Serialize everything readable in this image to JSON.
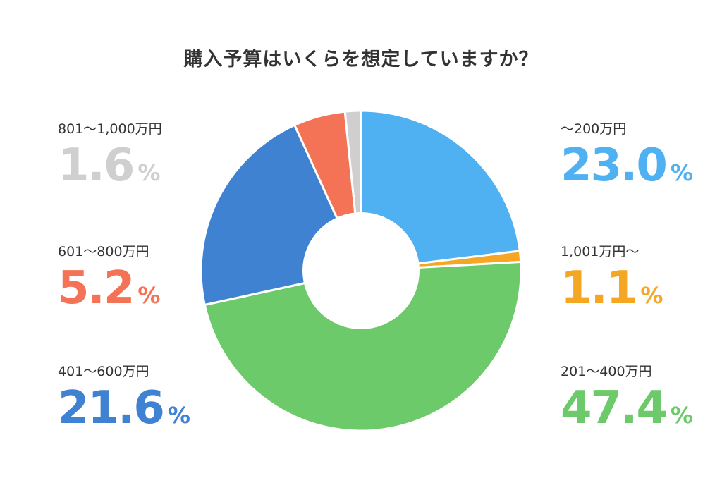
{
  "chart_data": {
    "type": "pie",
    "title": "購入予算はいくらを想定していますか？",
    "percent_sign": "%",
    "donut": true,
    "slices": [
      {
        "label": "～200万円",
        "value": 23.0,
        "display": "23.0",
        "color": "#4fb0f2"
      },
      {
        "label": "1,001万円～",
        "value": 1.1,
        "display": "1.1",
        "color": "#f5a623"
      },
      {
        "label": "201～400万円",
        "value": 47.4,
        "display": "47.4",
        "color": "#6cca6a"
      },
      {
        "label": "401～600万円",
        "value": 21.6,
        "display": "21.6",
        "color": "#3f82d2"
      },
      {
        "label": "601～800万円",
        "value": 5.2,
        "display": "5.2",
        "color": "#f47356"
      },
      {
        "label": "801～1,000万円",
        "value": 1.6,
        "display": "1.6",
        "color": "#cfcfcf"
      }
    ]
  }
}
